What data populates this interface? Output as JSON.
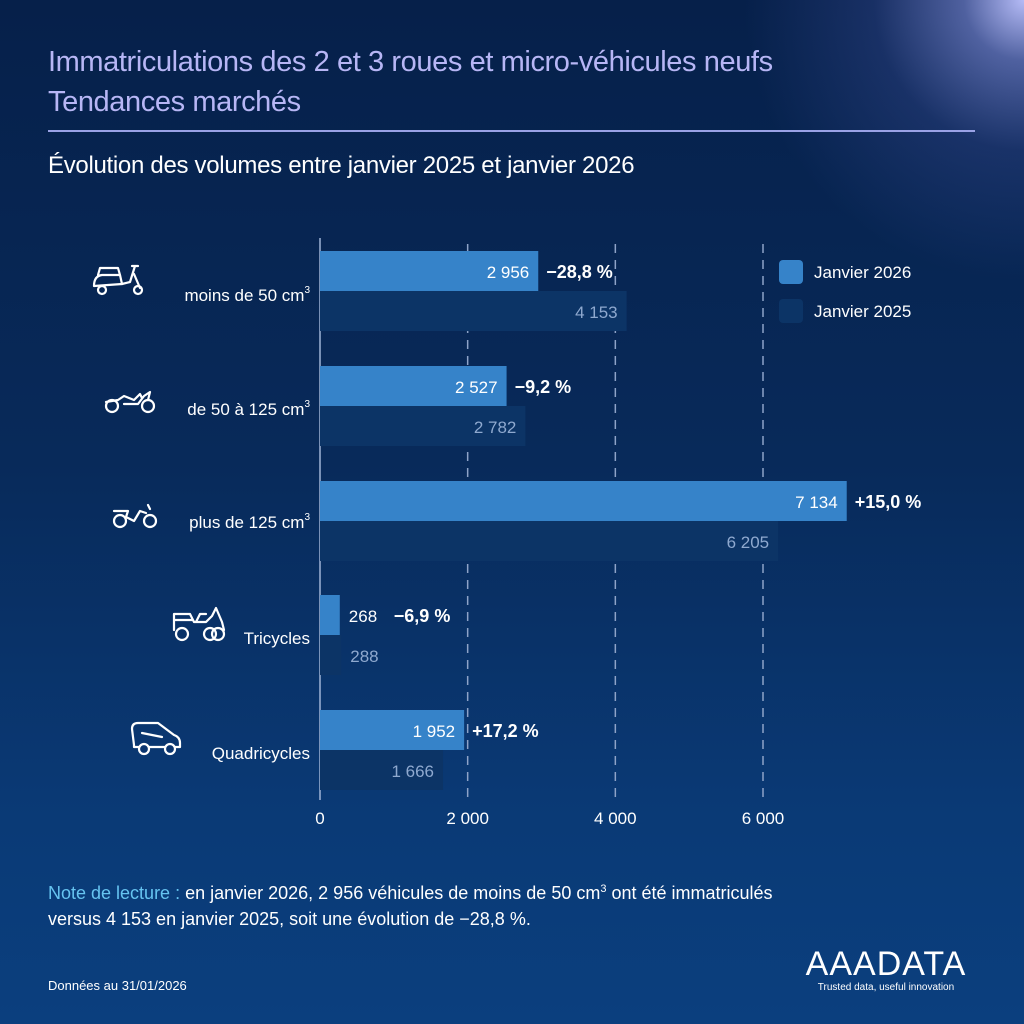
{
  "header": {
    "title_line1": "Immatriculations des 2 et 3 roues et micro-véhicules neufs",
    "title_line2": "Tendances marchés",
    "subtitle": "Évolution des volumes entre janvier 2025 et janvier 2026"
  },
  "colors": {
    "bar_2026": "#3683c9",
    "bar_2025": "#0c3466",
    "title": "#b7b6f5",
    "note_lead": "#66c4f0"
  },
  "chart_data": {
    "type": "bar",
    "orientation": "horizontal",
    "title": "Évolution des volumes entre janvier 2025 et janvier 2026",
    "categories": [
      {
        "label": "moins de 50 cm",
        "sup": "3",
        "icon": "scooter-icon"
      },
      {
        "label": "de 50 à 125 cm",
        "sup": "3",
        "icon": "motorcycle-icon"
      },
      {
        "label": "plus de 125 cm",
        "sup": "3",
        "icon": "sport-motorcycle-icon"
      },
      {
        "label": "Tricycles",
        "sup": "",
        "icon": "tricycle-icon"
      },
      {
        "label": "Quadricycles",
        "sup": "",
        "icon": "microcar-icon"
      }
    ],
    "series": [
      {
        "name": "Janvier 2026",
        "values": [
          2956,
          2527,
          7134,
          268,
          1952
        ],
        "labels": [
          "2 956",
          "2 527",
          "7 134",
          "268",
          "1 952"
        ]
      },
      {
        "name": "Janvier 2025",
        "values": [
          4153,
          2782,
          6205,
          288,
          1666
        ],
        "labels": [
          "4 153",
          "2 782",
          "6 205",
          "288",
          "1 666"
        ]
      }
    ],
    "changes": [
      "−28,8 %",
      "−9,2 %",
      "+15,0 %",
      "−6,9 %",
      "+17,2 %"
    ],
    "xlim": [
      0,
      7500
    ],
    "xticks": [
      0,
      2000,
      4000,
      6000
    ],
    "xtick_labels": [
      "0",
      "2 000",
      "4 000",
      "6 000"
    ],
    "grid": "vertical dashed",
    "legend": {
      "position": "top-right",
      "entries": [
        "Janvier 2026",
        "Janvier 2025"
      ]
    },
    "xlabel": "",
    "ylabel": ""
  },
  "note": {
    "lead": "Note de lecture :",
    "text_a": " en janvier 2026, 2 956 véhicules de moins de 50 cm",
    "sup": "3",
    "text_b": " ont été immatriculés",
    "line2": " versus 4 153 en janvier 2025, soit une évolution de −28,8 %."
  },
  "footer": {
    "date": "Données au 31/01/2026",
    "logo": "AAADATA",
    "tagline": "Trusted data, useful innovation"
  }
}
